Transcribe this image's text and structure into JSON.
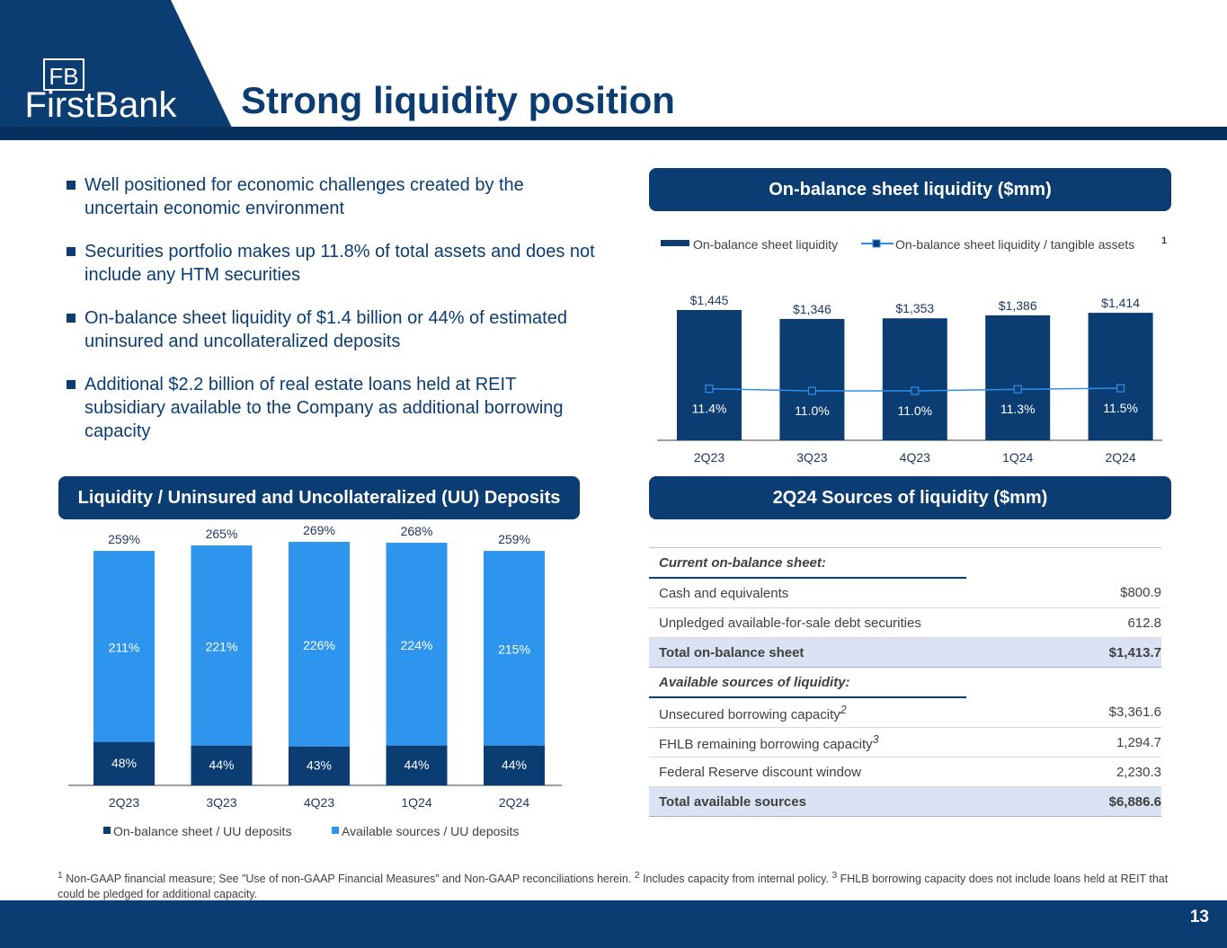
{
  "page": {
    "title": "Strong liquidity position",
    "page_number": "13"
  },
  "logo": {
    "monogram": "FB",
    "wordmark": "FirstBank"
  },
  "bullets": [
    "Well positioned for economic challenges created by the uncertain economic environment",
    "Securities portfolio makes up 11.8% of total assets and does not include any HTM securities",
    "On-balance sheet liquidity of $1.4 billion or 44% of estimated uninsured and uncollateralized deposits",
    "Additional $2.2 billion of real estate loans held at REIT subsidiary available to the Company as additional borrowing capacity"
  ],
  "panels": {
    "top_right_title": "On-balance sheet liquidity ($mm)",
    "bottom_left_title": "Liquidity / Uninsured and Uncollateralized (UU) Deposits",
    "bottom_right_title": "2Q24 Sources of liquidity ($mm)"
  },
  "chart_data": [
    {
      "type": "bar",
      "title": "On-balance sheet liquidity ($mm)",
      "categories": [
        "2Q23",
        "3Q23",
        "4Q23",
        "1Q24",
        "2Q24"
      ],
      "series": [
        {
          "name": "On-balance sheet liquidity",
          "type": "bar",
          "values": [
            1445,
            1346,
            1353,
            1386,
            1414
          ],
          "labels": [
            "$1,445",
            "$1,346",
            "$1,353",
            "$1,386",
            "$1,414"
          ]
        },
        {
          "name": "On-balance sheet liquidity / tangible assets",
          "type": "line",
          "values": [
            11.4,
            11.0,
            11.0,
            11.3,
            11.5
          ],
          "labels": [
            "11.4%",
            "11.0%",
            "11.0%",
            "11.3%",
            "11.5%"
          ]
        }
      ],
      "legend_superscript": "1",
      "ylim": [
        0,
        1445
      ],
      "colors": {
        "bar": "#0b3d72",
        "line": "#2e8fe8"
      }
    },
    {
      "type": "stacked bar",
      "title": "Liquidity / Uninsured and Uncollateralized (UU) Deposits",
      "categories": [
        "2Q23",
        "3Q23",
        "4Q23",
        "1Q24",
        "2Q24"
      ],
      "series": [
        {
          "name": "On-balance sheet / UU deposits",
          "values": [
            48,
            44,
            43,
            44,
            44
          ],
          "labels": [
            "48%",
            "44%",
            "43%",
            "44%",
            "44%"
          ]
        },
        {
          "name": "Available sources / UU deposits",
          "values": [
            211,
            221,
            226,
            224,
            215
          ],
          "labels": [
            "211%",
            "221%",
            "226%",
            "224%",
            "215%"
          ]
        }
      ],
      "totals": [
        259,
        265,
        269,
        268,
        259
      ],
      "total_labels": [
        "259%",
        "265%",
        "269%",
        "268%",
        "259%"
      ],
      "ylim": [
        0,
        269
      ],
      "colors": {
        "bottom": "#0b3d72",
        "top": "#2e95ee"
      }
    }
  ],
  "sources_table": {
    "rows": [
      {
        "kind": "hdr",
        "label": "Current on-balance sheet:",
        "value": ""
      },
      {
        "kind": "row",
        "label": "Cash and equivalents",
        "value": "$800.9"
      },
      {
        "kind": "row",
        "label": "Unpledged available-for-sale debt securities",
        "value": "612.8"
      },
      {
        "kind": "tot",
        "label": "Total on-balance sheet",
        "value": "$1,413.7"
      },
      {
        "kind": "hdr",
        "label": "Available sources of liquidity:",
        "value": ""
      },
      {
        "kind": "row",
        "label": "Unsecured borrowing capacity",
        "sup": "2",
        "value": "$3,361.6"
      },
      {
        "kind": "row",
        "label": "FHLB remaining borrowing capacity",
        "sup": "3",
        "value": "1,294.7"
      },
      {
        "kind": "row",
        "label": "Federal Reserve discount window",
        "value": "2,230.3"
      },
      {
        "kind": "tot",
        "label": "Total available sources",
        "value": "$6,886.6"
      }
    ]
  },
  "footnote": {
    "sup1": "1",
    "text1": " Non-GAAP financial measure; See \"Use of non-GAAP Financial Measures” and Non-GAAP reconciliations herein. ",
    "sup2": "2",
    "text2": " Includes capacity from internal policy. ",
    "sup3": "3",
    "text3": " FHLB borrowing capacity does not include loans held at REIT that could be pledged for additional capacity."
  }
}
